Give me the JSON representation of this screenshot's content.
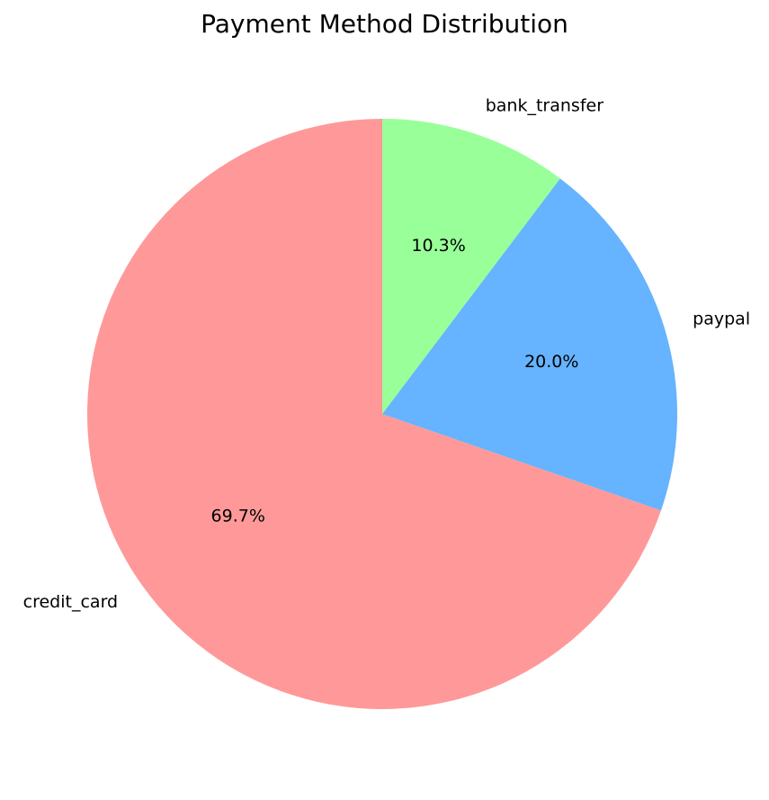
{
  "chart_data": {
    "type": "pie",
    "title": "Payment Method Distribution",
    "slices": [
      {
        "label": "credit_card",
        "value": 69.7,
        "pct_label": "69.7%",
        "color": "#ff9999"
      },
      {
        "label": "paypal",
        "value": 20.0,
        "pct_label": "20.0%",
        "color": "#66b3ff"
      },
      {
        "label": "bank_transfer",
        "value": 10.3,
        "pct_label": "10.3%",
        "color": "#99ff99"
      }
    ],
    "start_angle_deg": 90,
    "direction": "counterclockwise"
  }
}
